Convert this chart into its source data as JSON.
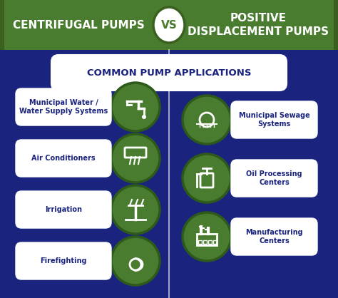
{
  "bg_color": "#1a237e",
  "header_green": "#4a7c2f",
  "circle_green": "#4a7c2f",
  "circle_border": "#2d5a1a",
  "white": "#ffffff",
  "title_left": "CENTRIFUGAL PUMPS",
  "title_vs": "VS",
  "title_right": "POSITIVE\nDISPLACEMENT PUMPS",
  "subtitle": "COMMON PUMP APPLICATIONS",
  "left_items": [
    "Municipal Water /\nWater Supply Systems",
    "Air Conditioners",
    "Irrigation",
    "Firefighting"
  ],
  "right_items": [
    "Municipal Sewage\nSystems",
    "Oil Processing\nCenters",
    "Manufacturing\nCenters"
  ],
  "figsize": [
    4.74,
    4.18
  ],
  "dpi": 100
}
